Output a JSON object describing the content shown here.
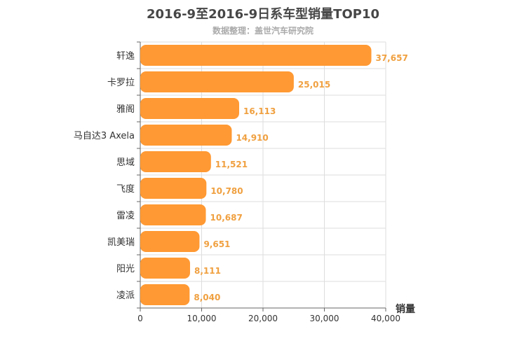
{
  "title": "2016-9至2016-9日系车型销量TOP10",
  "subtitle": "数据整理：盖世汽车研究院",
  "colors": {
    "bar": "#ff9933",
    "value_label": "#f0a040",
    "grid": "#dddddd",
    "axis": "#666666"
  },
  "chart_data": {
    "type": "bar",
    "orientation": "horizontal",
    "title": "2016-9至2016-9日系车型销量TOP10",
    "subtitle": "数据整理：盖世汽车研究院",
    "categories": [
      "轩逸",
      "卡罗拉",
      "雅阁",
      "马自达3 Axela",
      "思域",
      "飞度",
      "雷凌",
      "凯美瑞",
      "阳光",
      "凌派"
    ],
    "values": [
      37657,
      25015,
      16113,
      14910,
      11521,
      10780,
      10687,
      9651,
      8111,
      8040
    ],
    "value_labels": [
      "37,657",
      "25,015",
      "16,113",
      "14,910",
      "11,521",
      "10,780",
      "10,687",
      "9,651",
      "8,111",
      "8,040"
    ],
    "xlabel": "销量",
    "ylabel": "",
    "xlim": [
      0,
      40000
    ],
    "xticks": [
      0,
      10000,
      20000,
      30000,
      40000
    ],
    "xtick_labels": [
      "0",
      "10,000",
      "20,000",
      "30,000",
      "40,000"
    ],
    "grid": true
  }
}
